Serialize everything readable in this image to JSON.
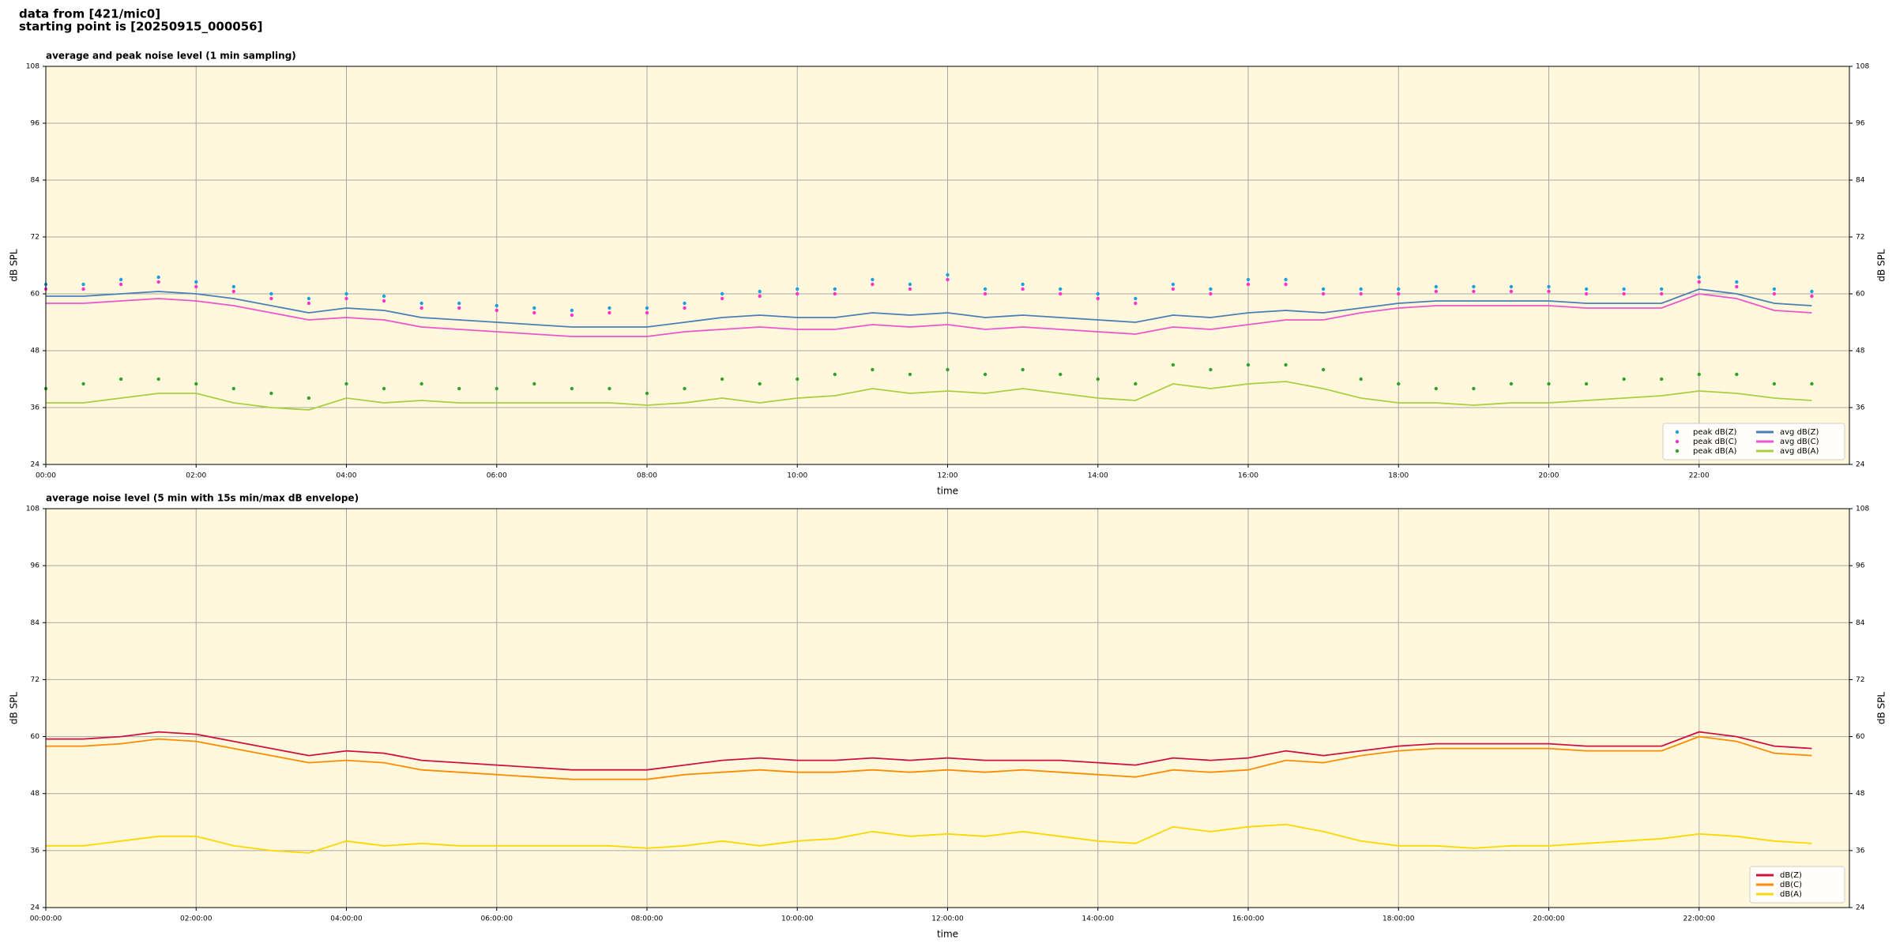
{
  "header": {
    "line1": "data from [421/mic0]",
    "line2": "starting point is [20250915_000056]"
  },
  "chart_data": [
    {
      "type": "line",
      "title": "average and peak noise level (1 min sampling)",
      "xlabel": "time",
      "ylabel": "dB SPL",
      "xlim": [
        "00:00",
        "24:00"
      ],
      "ylim": [
        24,
        108
      ],
      "yticks": [
        24,
        36,
        48,
        60,
        72,
        84,
        96,
        108
      ],
      "xticks": [
        "00:00",
        "02:00",
        "04:00",
        "06:00",
        "08:00",
        "10:00",
        "12:00",
        "14:00",
        "16:00",
        "18:00",
        "20:00",
        "22:00"
      ],
      "grid": true,
      "legend": "lower right",
      "legend_columns": 2,
      "background": "#fff8dc",
      "x": [
        "00:00",
        "00:30",
        "01:00",
        "01:30",
        "02:00",
        "02:30",
        "03:00",
        "03:30",
        "04:00",
        "04:30",
        "05:00",
        "05:30",
        "06:00",
        "06:30",
        "07:00",
        "07:30",
        "08:00",
        "08:30",
        "09:00",
        "09:30",
        "10:00",
        "10:30",
        "11:00",
        "11:30",
        "12:00",
        "12:30",
        "13:00",
        "13:30",
        "14:00",
        "14:30",
        "15:00",
        "15:30",
        "16:00",
        "16:30",
        "17:00",
        "17:30",
        "18:00",
        "18:30",
        "19:00",
        "19:30",
        "20:00",
        "20:30",
        "21:00",
        "21:30",
        "22:00",
        "22:30",
        "23:00",
        "23:30"
      ],
      "series": [
        {
          "name": "peak dB(Z)",
          "type": "scatter",
          "color": "#1f9fe0",
          "values": [
            62,
            62,
            63,
            63.5,
            62.5,
            61.5,
            60,
            59,
            60,
            59.5,
            58,
            58,
            57.5,
            57,
            56.5,
            57,
            57,
            58,
            60,
            60.5,
            61,
            61,
            63,
            62,
            64,
            61,
            62,
            61,
            60,
            59,
            62,
            61,
            63,
            63,
            61,
            61,
            61,
            61.5,
            61.5,
            61.5,
            61.5,
            61,
            61,
            61,
            63.5,
            62.5,
            61,
            60.5
          ]
        },
        {
          "name": "peak dB(C)",
          "type": "scatter",
          "color": "#ff33cc",
          "values": [
            61,
            61,
            62,
            62.5,
            61.5,
            60.5,
            59,
            58,
            59,
            58.5,
            57,
            57,
            56.5,
            56,
            55.5,
            56,
            56,
            57,
            59,
            59.5,
            60,
            60,
            62,
            61,
            63,
            60,
            61,
            60,
            59,
            58,
            61,
            60,
            62,
            62,
            60,
            60,
            60,
            60.5,
            60.5,
            60.5,
            60.5,
            60,
            60,
            60,
            62.5,
            61.5,
            60,
            59.5
          ]
        },
        {
          "name": "peak dB(A)",
          "type": "scatter",
          "color": "#33a02c",
          "values": [
            40,
            41,
            42,
            42,
            41,
            40,
            39,
            38,
            41,
            40,
            41,
            40,
            40,
            41,
            40,
            40,
            39,
            40,
            42,
            41,
            42,
            43,
            44,
            43,
            44,
            43,
            44,
            43,
            42,
            41,
            45,
            44,
            45,
            45,
            44,
            42,
            41,
            40,
            40,
            41,
            41,
            41,
            42,
            42,
            43,
            43,
            41,
            41
          ]
        },
        {
          "name": "avg dB(Z)",
          "type": "line",
          "color": "#4a7fb5",
          "values": [
            59.5,
            59.5,
            60,
            60.5,
            60,
            59,
            57.5,
            56,
            57,
            56.5,
            55,
            54.5,
            54,
            53.5,
            53,
            53,
            53,
            54,
            55,
            55.5,
            55,
            55,
            56,
            55.5,
            56,
            55,
            55.5,
            55,
            54.5,
            54,
            55.5,
            55,
            56,
            56.5,
            56,
            57,
            58,
            58.5,
            58.5,
            58.5,
            58.5,
            58,
            58,
            58,
            61,
            60,
            58,
            57.5
          ]
        },
        {
          "name": "avg dB(C)",
          "type": "line",
          "color": "#ee55cc",
          "values": [
            58,
            58,
            58.5,
            59,
            58.5,
            57.5,
            56,
            54.5,
            55,
            54.5,
            53,
            52.5,
            52,
            51.5,
            51,
            51,
            51,
            52,
            52.5,
            53,
            52.5,
            52.5,
            53.5,
            53,
            53.5,
            52.5,
            53,
            52.5,
            52,
            51.5,
            53,
            52.5,
            53.5,
            54.5,
            54.5,
            56,
            57,
            57.5,
            57.5,
            57.5,
            57.5,
            57,
            57,
            57,
            60,
            59,
            56.5,
            56
          ]
        },
        {
          "name": "avg dB(A)",
          "type": "line",
          "color": "#a8d040",
          "values": [
            37,
            37,
            38,
            39,
            39,
            37,
            36,
            35.5,
            38,
            37,
            37.5,
            37,
            37,
            37,
            37,
            37,
            36.5,
            37,
            38,
            37,
            38,
            38.5,
            40,
            39,
            39.5,
            39,
            40,
            39,
            38,
            37.5,
            41,
            40,
            41,
            41.5,
            40,
            38,
            37,
            37,
            36.5,
            37,
            37,
            37.5,
            38,
            38.5,
            39.5,
            39,
            38,
            37.5
          ]
        }
      ]
    },
    {
      "type": "line",
      "title": "average noise level (5 min with 15s min/max dB envelope)",
      "xlabel": "time",
      "ylabel": "dB SPL",
      "xlim": [
        "00:00:00",
        "24:00:00"
      ],
      "ylim": [
        24,
        108
      ],
      "yticks": [
        24,
        36,
        48,
        60,
        72,
        84,
        96,
        108
      ],
      "xticks": [
        "00:00:00",
        "02:00:00",
        "04:00:00",
        "06:00:00",
        "08:00:00",
        "10:00:00",
        "12:00:00",
        "14:00:00",
        "16:00:00",
        "18:00:00",
        "20:00:00",
        "22:00:00"
      ],
      "grid": true,
      "legend": "lower right",
      "legend_columns": 1,
      "background": "#fff8dc",
      "x": [
        "00:00:00",
        "00:30:00",
        "01:00:00",
        "01:30:00",
        "02:00:00",
        "02:30:00",
        "03:00:00",
        "03:30:00",
        "04:00:00",
        "04:30:00",
        "05:00:00",
        "05:30:00",
        "06:00:00",
        "06:30:00",
        "07:00:00",
        "07:30:00",
        "08:00:00",
        "08:30:00",
        "09:00:00",
        "09:30:00",
        "10:00:00",
        "10:30:00",
        "11:00:00",
        "11:30:00",
        "12:00:00",
        "12:30:00",
        "13:00:00",
        "13:30:00",
        "14:00:00",
        "14:30:00",
        "15:00:00",
        "15:30:00",
        "16:00:00",
        "16:30:00",
        "17:00:00",
        "17:30:00",
        "18:00:00",
        "18:30:00",
        "19:00:00",
        "19:30:00",
        "20:00:00",
        "20:30:00",
        "21:00:00",
        "21:30:00",
        "22:00:00",
        "22:30:00",
        "23:00:00",
        "23:30:00"
      ],
      "series": [
        {
          "name": "dB(Z)",
          "type": "line",
          "color": "#d01040",
          "values": [
            59.5,
            59.5,
            60,
            61,
            60.5,
            59,
            57.5,
            56,
            57,
            56.5,
            55,
            54.5,
            54,
            53.5,
            53,
            53,
            53,
            54,
            55,
            55.5,
            55,
            55,
            55.5,
            55,
            55.5,
            55,
            55,
            55,
            54.5,
            54,
            55.5,
            55,
            55.5,
            57,
            56,
            57,
            58,
            58.5,
            58.5,
            58.5,
            58.5,
            58,
            58,
            58,
            61,
            60,
            58,
            57.5
          ]
        },
        {
          "name": "dB(C)",
          "type": "line",
          "color": "#ff8c00",
          "values": [
            58,
            58,
            58.5,
            59.5,
            59,
            57.5,
            56,
            54.5,
            55,
            54.5,
            53,
            52.5,
            52,
            51.5,
            51,
            51,
            51,
            52,
            52.5,
            53,
            52.5,
            52.5,
            53,
            52.5,
            53,
            52.5,
            53,
            52.5,
            52,
            51.5,
            53,
            52.5,
            53,
            55,
            54.5,
            56,
            57,
            57.5,
            57.5,
            57.5,
            57.5,
            57,
            57,
            57,
            60,
            59,
            56.5,
            56
          ]
        },
        {
          "name": "dB(A)",
          "type": "line",
          "color": "#ffd700",
          "values": [
            37,
            37,
            38,
            39,
            39,
            37,
            36,
            35.5,
            38,
            37,
            37.5,
            37,
            37,
            37,
            37,
            37,
            36.5,
            37,
            38,
            37,
            38,
            38.5,
            40,
            39,
            39.5,
            39,
            40,
            39,
            38,
            37.5,
            41,
            40,
            41,
            41.5,
            40,
            38,
            37,
            37,
            36.5,
            37,
            37,
            37.5,
            38,
            38.5,
            39.5,
            39,
            38,
            37.5
          ]
        }
      ]
    }
  ]
}
